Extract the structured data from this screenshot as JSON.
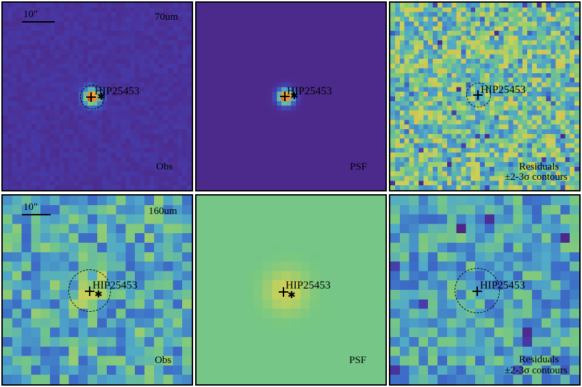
{
  "scale_bar": "10\"",
  "source": "HIP25453",
  "rows": [
    {
      "wavelength": "70um",
      "panels": [
        {
          "label": "Obs",
          "colormap": "obs70"
        },
        {
          "label": "PSF",
          "colormap": "psf70"
        },
        {
          "label": "Residuals",
          "label2": "±2-3σ contours",
          "colormap": "res70"
        }
      ]
    },
    {
      "wavelength": "160um",
      "panels": [
        {
          "label": "Obs",
          "colormap": "obs160"
        },
        {
          "label": "PSF",
          "colormap": "psf160"
        },
        {
          "label": "Residuals",
          "label2": "±2-3σ contours",
          "colormap": "res160"
        }
      ]
    }
  ],
  "colors": {
    "background_purple": "#5a2a8a",
    "psf_green": "#7fbf7b",
    "peak_red": "#d7301f"
  },
  "axis_ticks_top_right": [
    "0",
    "10",
    "20"
  ]
}
